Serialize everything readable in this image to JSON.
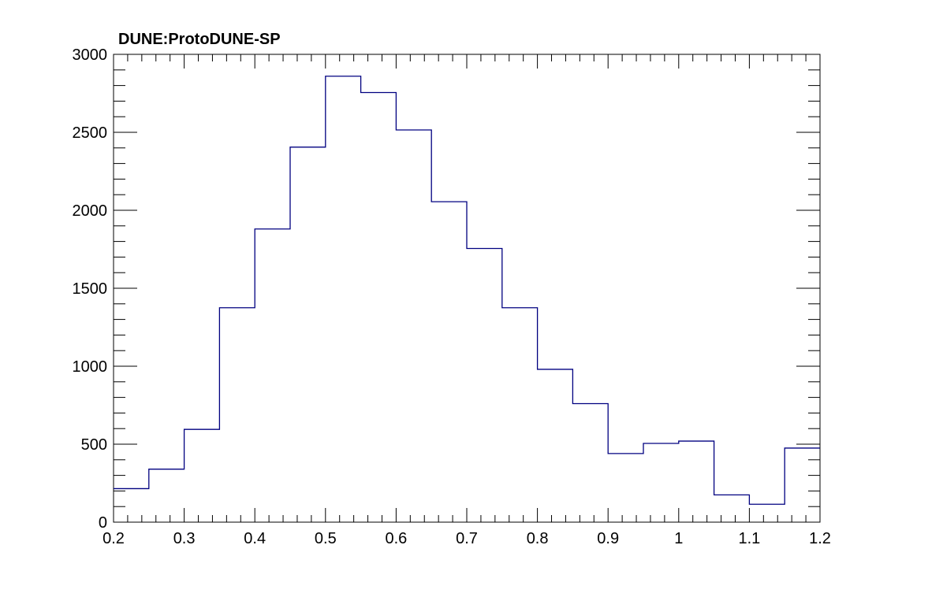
{
  "chart_data": {
    "type": "bar",
    "histogram": true,
    "title": "DUNE:ProtoDUNE-SP",
    "xlabel": "",
    "ylabel": "",
    "xlim": [
      0.2,
      1.2
    ],
    "ylim": [
      0,
      3000
    ],
    "bin_width": 0.05,
    "x": [
      0.2,
      0.25,
      0.3,
      0.35,
      0.4,
      0.45,
      0.5,
      0.55,
      0.6,
      0.65,
      0.7,
      0.75,
      0.8,
      0.85,
      0.9,
      0.95,
      1.0,
      1.05,
      1.1,
      1.15
    ],
    "values": [
      215,
      340,
      595,
      1375,
      1880,
      2405,
      2860,
      2755,
      2515,
      2055,
      1755,
      1375,
      980,
      760,
      440,
      505,
      520,
      175,
      115,
      475
    ],
    "x_ticks": [
      "0.2",
      "0.3",
      "0.4",
      "0.5",
      "0.6",
      "0.7",
      "0.8",
      "0.9",
      "1",
      "1.1",
      "1.2"
    ],
    "y_ticks": [
      "0",
      "500",
      "1000",
      "1500",
      "2000",
      "2500",
      "3000"
    ],
    "grid": false,
    "line_color": "#000080",
    "axis_color": "#000000"
  }
}
